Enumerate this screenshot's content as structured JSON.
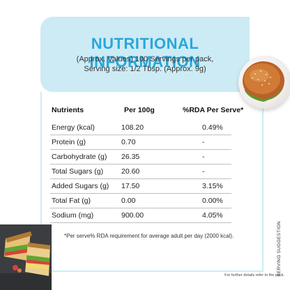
{
  "header": {
    "title": "NUTRITIONAL INFORMATION",
    "subtitle_line1": "(Approx. Values) 100 Servings per pack,",
    "subtitle_line2": "Serving size: 1/2 Tbsp. (Approx. 9g)"
  },
  "table": {
    "columns": [
      "Nutrients",
      "Per 100g",
      "%RDA Per Serve*"
    ],
    "rows": [
      {
        "nutrient": "Energy (kcal)",
        "per100g": "108.20",
        "rda": "0.49%"
      },
      {
        "nutrient": "Protein (g)",
        "per100g": "0.70",
        "rda": "-"
      },
      {
        "nutrient": "Carbohydrate (g)",
        "per100g": "26.35",
        "rda": "-"
      },
      {
        "nutrient": "Total Sugars (g)",
        "per100g": "20.60",
        "rda": "-"
      },
      {
        "nutrient": "Added Sugars (g)",
        "per100g": "17.50",
        "rda": "3.15%"
      },
      {
        "nutrient": "Total Fat (g)",
        "per100g": "0.00",
        "rda": "0.00%"
      },
      {
        "nutrient": "Sodium (mg)",
        "per100g": "900.00",
        "rda": "4.05%"
      }
    ]
  },
  "footnote": "*Per serve% RDA requirement for average adult per day (2000 kcal).",
  "side_label": "SERVING SUGGESTION",
  "further_details": "For further details refer to the pack.",
  "colors": {
    "accent": "#29a7d9",
    "header_bg": "#cdebf5",
    "divider": "#bfbfbf"
  },
  "images": {
    "top_right": "burger-plate-image",
    "bottom_left": "sandwich-image"
  }
}
